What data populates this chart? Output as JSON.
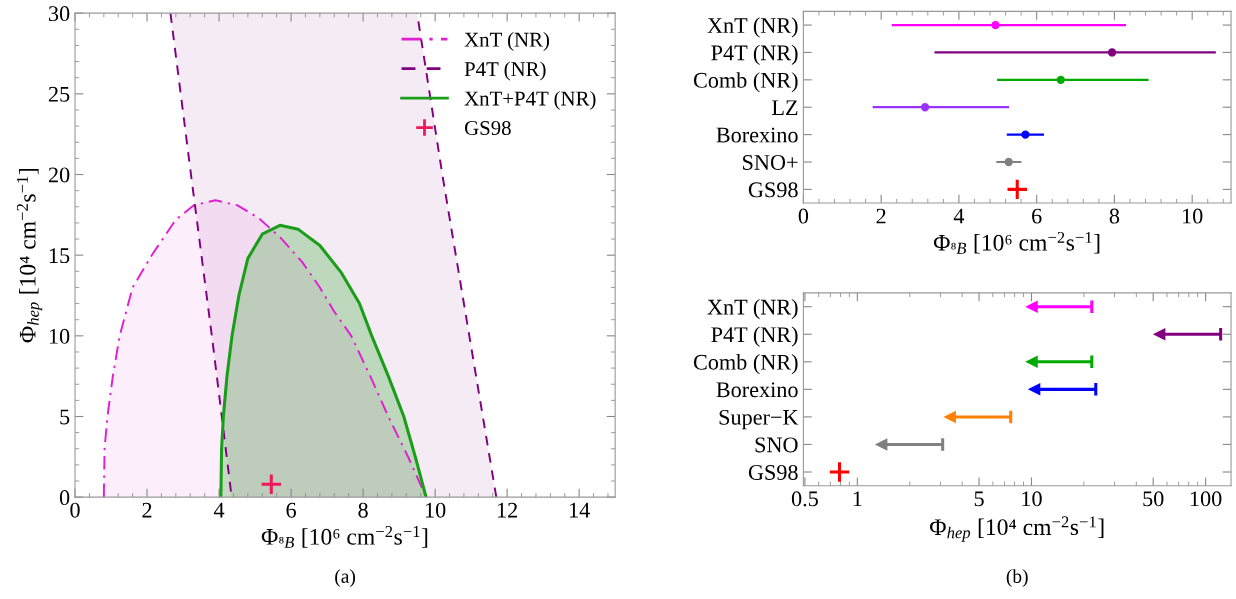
{
  "chart_data": [
    {
      "type": "line",
      "xlabel": "Φ$_{⁸B}$ [10⁶ cm$^{−2}$s$^{−1}$]",
      "ylabel": "Φ$_{hep}$ [10⁴ cm$^{−2}$s$^{−1}$]",
      "xlim": [
        0,
        15
      ],
      "ylim": [
        0,
        30
      ],
      "xticks": [
        0,
        2,
        4,
        6,
        8,
        10,
        12,
        14
      ],
      "yticks": [
        0,
        5,
        10,
        15,
        20,
        25,
        30
      ],
      "legend": "top right",
      "annotations": [
        "(a)"
      ],
      "series": [
        {
          "name": "XnT (NR)",
          "type": "area",
          "color": "#e020d0",
          "line_style": "dashdot",
          "x": [
            0.8,
            0.82,
            0.9,
            1.05,
            1.24,
            1.6,
            2.13,
            2.8,
            3.3,
            3.9,
            4.5,
            5.1,
            5.7,
            6.3,
            6.8,
            7.2,
            7.67,
            8.2,
            8.7,
            9.25,
            9.75
          ],
          "values": [
            0,
            3,
            5,
            7.5,
            10,
            13,
            15,
            17.2,
            18.1,
            18.4,
            18.1,
            17.3,
            16.1,
            14.6,
            13,
            11.5,
            10,
            7.5,
            5,
            2.5,
            0
          ]
        },
        {
          "name": "P4T (NR)",
          "type": "area",
          "color": "#800080",
          "line_style": "dashed",
          "x": [
            2.65,
            3.22,
            3.8,
            4.35,
            null,
            11.7,
            10.95,
            10.2,
            9.5
          ],
          "values": [
            30,
            20,
            10,
            0,
            null,
            0,
            10,
            20,
            30
          ]
        },
        {
          "name": "XnT+P4T (NR)",
          "type": "area",
          "color": "#1a9e1a",
          "line_style": "solid",
          "x": [
            4.05,
            4.07,
            4.12,
            4.22,
            4.36,
            4.55,
            4.8,
            5.2,
            5.69,
            6.2,
            6.8,
            7.4,
            7.9,
            8.24,
            8.7,
            9.13,
            9.45,
            9.75
          ],
          "values": [
            0,
            3,
            5,
            7.5,
            10,
            12.5,
            14.8,
            16.3,
            16.85,
            16.6,
            15.6,
            13.9,
            12,
            10,
            7.5,
            5,
            2.5,
            0
          ]
        },
        {
          "name": "GS98",
          "type": "scatter",
          "color": "#f0185a",
          "marker": "cross",
          "x": [
            5.45
          ],
          "values": [
            0.8
          ]
        }
      ]
    },
    {
      "type": "scatter",
      "orientation": "horizontal",
      "categories": [
        "XnT (NR)",
        "P4T (NR)",
        "Comb (NR)",
        "LZ",
        "Borexino",
        "SNO+",
        "GS98"
      ],
      "xlabel": "Φ$_{⁸B}$ [10⁶ cm$^{−2}$s$^{−1}$]",
      "xlim": [
        0,
        11
      ],
      "xticks": [
        0,
        2,
        4,
        6,
        8,
        10
      ],
      "series": [
        {
          "marker": "circle",
          "colors": [
            "#ff00ff",
            "#800080",
            "#00aa00",
            "#9933ff",
            "#0000ff",
            "#808080",
            null
          ],
          "values": [
            4.94,
            7.94,
            6.62,
            3.13,
            5.71,
            5.28,
            null
          ],
          "errors": [
            [
              2.3,
              8.27
            ],
            [
              3.4,
              10.58
            ],
            [
              5.01,
              8.85
            ],
            [
              1.81,
              5.26
            ],
            [
              5.26,
              6.16
            ],
            [
              4.99,
              5.58
            ],
            null
          ]
        },
        {
          "marker": "cross",
          "color": "#ff0000",
          "values": [
            null,
            null,
            null,
            null,
            null,
            null,
            5.5
          ]
        }
      ]
    },
    {
      "type": "scatter",
      "orientation": "horizontal",
      "log": "x",
      "categories": [
        "XnT (NR)",
        "P4T (NR)",
        "Comb (NR)",
        "Borexino",
        "Super−K",
        "SNO",
        "GS98"
      ],
      "xlabel": "Φ$_{hep}$ [10⁴ cm$^{−2}$s$^{−1}$]",
      "xlim": [
        0.49,
        140
      ],
      "xticks": [
        0.5,
        1,
        5,
        10,
        50,
        100
      ],
      "annotations": [
        "(b)"
      ],
      "series": [
        {
          "marker": "triangle",
          "colors": [
            "#ff00ff",
            "#800080",
            "#00aa00",
            "#0000ff",
            "#ff8000",
            "#808080",
            null
          ],
          "values": [
            10.0,
            54.1,
            10.0,
            10.35,
            3.39,
            1.37,
            null
          ],
          "errors": [
            [
              10.0,
              22.2
            ],
            [
              54.1,
              122
            ],
            [
              10.0,
              22.2
            ],
            [
              10.35,
              23.4
            ],
            [
              3.39,
              7.6
            ],
            [
              1.37,
              3.09
            ],
            null
          ]
        },
        {
          "marker": "cross",
          "color": "#ff0000",
          "values": [
            null,
            null,
            null,
            null,
            null,
            null,
            0.79
          ]
        }
      ]
    }
  ]
}
